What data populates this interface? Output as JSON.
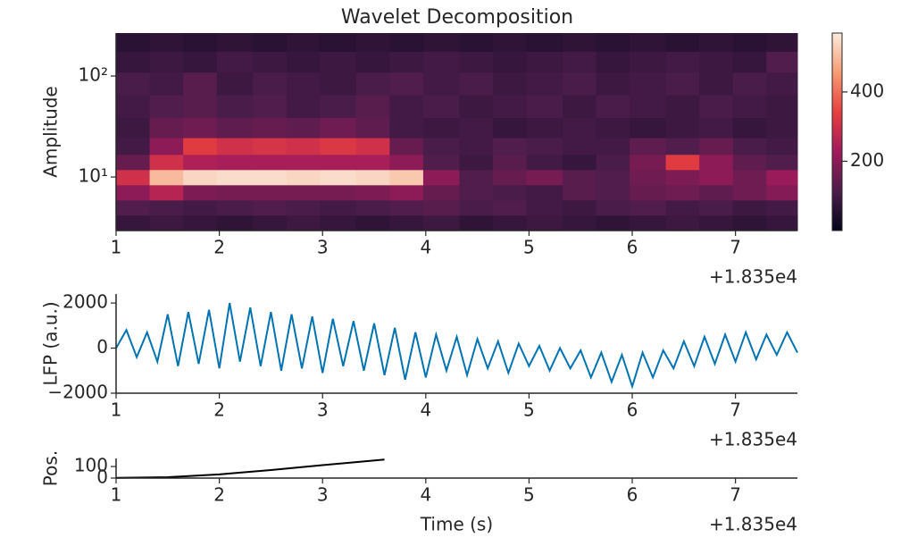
{
  "chart_data": [
    {
      "type": "heatmap",
      "title": "Wavelet Decomposition",
      "ylabel": "Amplitude",
      "x_offset_label": "+1.835e4",
      "xlim": [
        1,
        7.6
      ],
      "xticks": [
        1,
        2,
        3,
        4,
        5,
        6,
        7
      ],
      "ylim": [
        2.95,
        266
      ],
      "yscale": "log",
      "yticks": [
        {
          "value": 10,
          "label": "10¹"
        },
        {
          "value": 100,
          "label": "10²"
        }
      ],
      "x": [
        1.15,
        1.5,
        1.8,
        2.15,
        2.5,
        2.8,
        3.15,
        3.5,
        3.8,
        4.15,
        4.5,
        4.8,
        5.15,
        5.5,
        5.8,
        6.15,
        6.5,
        6.8,
        7.15,
        7.45
      ],
      "y": [
        3.5,
        5,
        7,
        10,
        14,
        20,
        30,
        50,
        85,
        140,
        220
      ],
      "z": [
        [
          80,
          90,
          80,
          70,
          80,
          90,
          80,
          70,
          80,
          90,
          70,
          80,
          90,
          80,
          70,
          80,
          90,
          80,
          70,
          80
        ],
        [
          120,
          110,
          100,
          110,
          120,
          110,
          100,
          110,
          120,
          130,
          110,
          120,
          100,
          90,
          110,
          120,
          100,
          110,
          90,
          100
        ],
        [
          200,
          260,
          180,
          170,
          170,
          170,
          170,
          180,
          200,
          150,
          120,
          110,
          100,
          130,
          120,
          150,
          160,
          140,
          160,
          190
        ],
        [
          300,
          500,
          540,
          550,
          550,
          540,
          550,
          540,
          520,
          200,
          120,
          150,
          170,
          130,
          120,
          160,
          180,
          200,
          160,
          220
        ],
        [
          150,
          300,
          250,
          240,
          240,
          240,
          240,
          240,
          200,
          120,
          90,
          130,
          100,
          80,
          110,
          170,
          330,
          200,
          140,
          120
        ],
        [
          100,
          200,
          330,
          300,
          310,
          300,
          320,
          300,
          150,
          110,
          100,
          120,
          110,
          100,
          100,
          140,
          120,
          150,
          110,
          100
        ],
        [
          90,
          150,
          160,
          140,
          150,
          140,
          160,
          140,
          100,
          90,
          100,
          80,
          90,
          100,
          90,
          80,
          90,
          100,
          80,
          90
        ],
        [
          100,
          120,
          130,
          110,
          120,
          100,
          110,
          130,
          100,
          110,
          90,
          100,
          110,
          90,
          110,
          100,
          90,
          110,
          100,
          90
        ],
        [
          110,
          100,
          130,
          90,
          110,
          100,
          90,
          110,
          120,
          100,
          110,
          90,
          100,
          110,
          90,
          100,
          110,
          90,
          110,
          100
        ],
        [
          80,
          90,
          80,
          100,
          90,
          80,
          90,
          80,
          90,
          100,
          90,
          80,
          90,
          100,
          80,
          90,
          100,
          90,
          80,
          120
        ],
        [
          60,
          70,
          60,
          70,
          60,
          70,
          60,
          70,
          60,
          70,
          60,
          70,
          60,
          70,
          60,
          70,
          60,
          70,
          60,
          70
        ]
      ],
      "clim": [
        0,
        570
      ],
      "cticks": [
        200,
        400
      ],
      "colormap": [
        "#03051a",
        "#4c1d4b",
        "#a11a5b",
        "#e83f3f",
        "#f69c73",
        "#faebdd"
      ]
    },
    {
      "type": "line",
      "ylabel": "LFP (a.u.)",
      "x_offset_label": "+1.835e4",
      "xlim": [
        1,
        7.6
      ],
      "xticks": [
        1,
        2,
        3,
        4,
        5,
        6,
        7
      ],
      "ylim": [
        -2000,
        2400
      ],
      "yticks": [
        {
          "value": -2000,
          "label": "−2000"
        },
        0,
        2000
      ],
      "series": [
        {
          "color": "#0173b2",
          "x": [
            1.0,
            1.1,
            1.2,
            1.3,
            1.4,
            1.5,
            1.6,
            1.7,
            1.8,
            1.9,
            2.0,
            2.1,
            2.2,
            2.3,
            2.4,
            2.5,
            2.6,
            2.7,
            2.8,
            2.9,
            3.0,
            3.1,
            3.2,
            3.3,
            3.4,
            3.5,
            3.6,
            3.7,
            3.8,
            3.9,
            4.0,
            4.1,
            4.2,
            4.3,
            4.4,
            4.5,
            4.6,
            4.7,
            4.8,
            4.9,
            5.0,
            5.1,
            5.2,
            5.3,
            5.4,
            5.5,
            5.6,
            5.7,
            5.8,
            5.9,
            6.0,
            6.1,
            6.2,
            6.3,
            6.4,
            6.5,
            6.6,
            6.7,
            6.8,
            6.9,
            7.0,
            7.1,
            7.2,
            7.3,
            7.4,
            7.5,
            7.6
          ],
          "values": [
            0,
            800,
            -400,
            700,
            -600,
            1500,
            -800,
            1600,
            -700,
            1700,
            -900,
            2000,
            -600,
            1800,
            -800,
            1600,
            -1000,
            1500,
            -900,
            1400,
            -1100,
            1300,
            -800,
            1200,
            -1000,
            1100,
            -1200,
            900,
            -1400,
            700,
            -1300,
            600,
            -1000,
            500,
            -1200,
            400,
            -900,
            300,
            -1100,
            200,
            -800,
            100,
            -1000,
            0,
            -900,
            -100,
            -1300,
            -200,
            -1500,
            -300,
            -1700,
            -200,
            -1300,
            -100,
            -900,
            300,
            -800,
            500,
            -700,
            600,
            -600,
            700,
            -500,
            600,
            -300,
            700,
            -200
          ]
        }
      ]
    },
    {
      "type": "line",
      "ylabel": "Pos.",
      "xlabel": "Time (s)",
      "x_offset_label": "+1.835e4",
      "xlim": [
        1,
        7.6
      ],
      "xticks": [
        1,
        2,
        3,
        4,
        5,
        6,
        7
      ],
      "ylim": [
        0,
        170
      ],
      "yticks": [
        0,
        100
      ],
      "series": [
        {
          "color": "#000000",
          "x": [
            1,
            1.5,
            2,
            2.5,
            3,
            3.6
          ],
          "values": [
            2,
            8,
            32,
            70,
            112,
            160
          ]
        }
      ]
    }
  ]
}
